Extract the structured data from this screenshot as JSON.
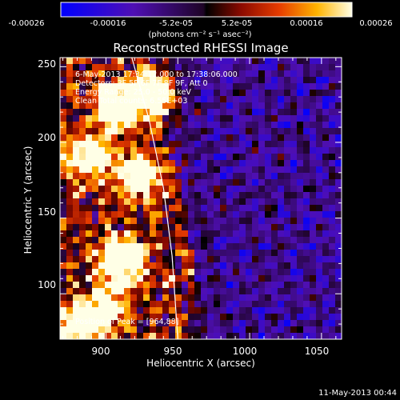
{
  "colorbar": {
    "tick_labels": [
      "-0.00026",
      "-0.00016",
      "-5.2e-05",
      "5.2e-05",
      "0.00016",
      "0.00026"
    ],
    "units": "(photons cm⁻² s⁻¹ asec⁻²)"
  },
  "plot": {
    "title": "Reconstructed RHESSI Image",
    "annotations": [
      "6-May-2013 17:34:12.000 to 17:38:06.000",
      "Detectors: 3F 5F 6F 7F 8F 9F, Att 0",
      "Energy Range: 25.0 - 50.0 keV",
      "Clean     Total counts: 6.55E+03"
    ],
    "peak_label": "Position of Peak = [964,88]",
    "timestamp": "11-May-2013 00:44"
  },
  "chart_data": {
    "type": "heatmap",
    "title": "Reconstructed RHESSI Image",
    "xlabel": "Heliocentric X (arcsec)",
    "ylabel": "Heliocentric Y (arcsec)",
    "x_ticks": [
      900,
      950,
      1000,
      1050
    ],
    "y_ticks": [
      100,
      150,
      200,
      250
    ],
    "xlim": [
      868,
      1064
    ],
    "ylim": [
      70,
      256
    ],
    "colorbar_range": [
      -0.00026,
      0.00026
    ],
    "colorbar_ticks": [
      -0.00026,
      -0.00016,
      -5.2e-05,
      5.2e-05,
      0.00016,
      0.00026
    ],
    "peak_position": [
      964,
      88
    ],
    "limb_curve": [
      [
        918,
        256
      ],
      [
        930,
        215
      ],
      [
        940,
        170
      ],
      [
        946,
        125
      ],
      [
        950,
        70
      ]
    ]
  }
}
